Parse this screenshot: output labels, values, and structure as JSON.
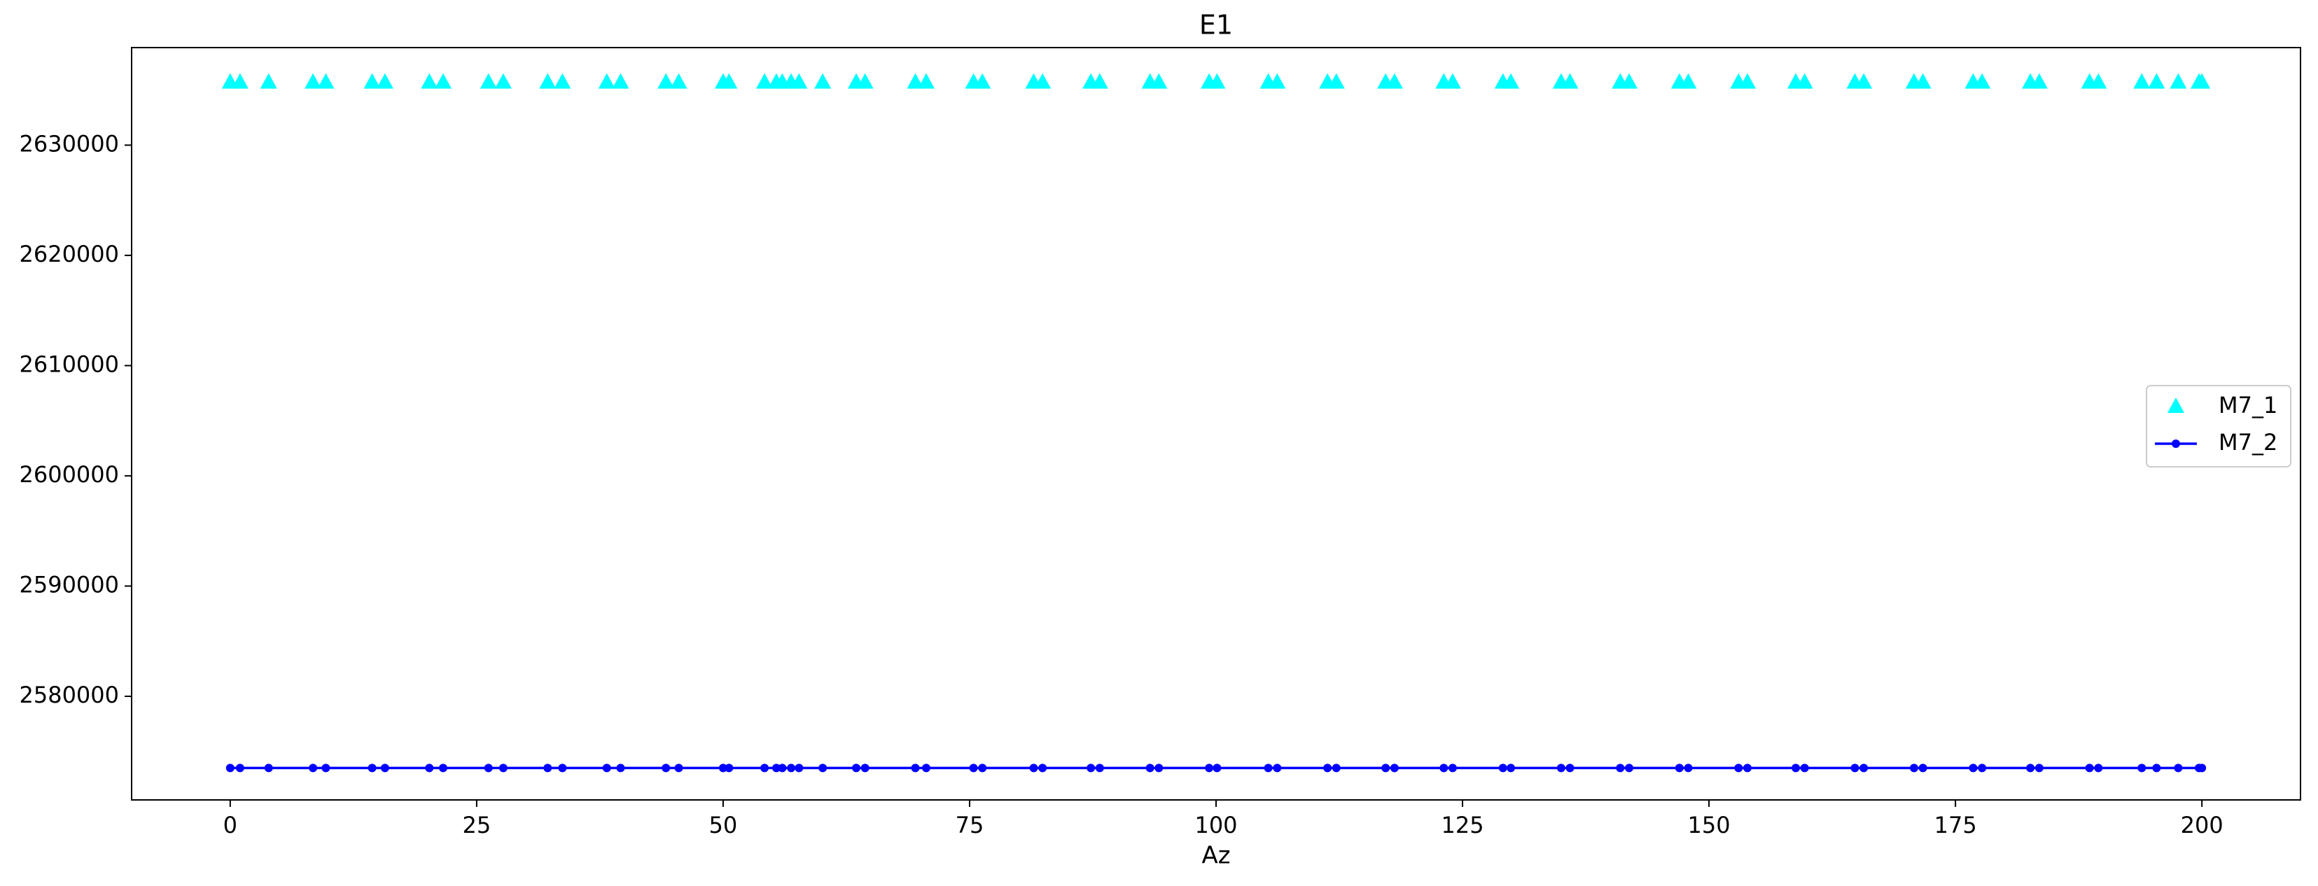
{
  "chart_data": {
    "type": "line",
    "title": "E1",
    "xlabel": "Az",
    "x": [
      0,
      1,
      3.9,
      8.4,
      9.7,
      14.4,
      15.7,
      20.2,
      21.6,
      26.2,
      27.7,
      32.2,
      33.7,
      38.2,
      39.6,
      44.2,
      45.5,
      50,
      50.6,
      54.2,
      55.4,
      56,
      56.9,
      57.7,
      60.1,
      63.5,
      64.4,
      69.5,
      70.6,
      75.4,
      76.3,
      81.5,
      82.4,
      87.3,
      88.2,
      93.3,
      94.2,
      99.3,
      100.1,
      105.3,
      106.2,
      111.3,
      112.2,
      117.2,
      118.1,
      123.1,
      124,
      129.1,
      129.9,
      135,
      135.9,
      141,
      141.9,
      147,
      147.9,
      153,
      153.9,
      158.8,
      159.7,
      164.8,
      165.7,
      170.8,
      171.7,
      176.8,
      177.7,
      182.6,
      183.5,
      188.6,
      189.5,
      193.9,
      195.4,
      197.6,
      199.7,
      200
    ],
    "series": [
      {
        "name": "M7_1",
        "color": "#00ffff",
        "marker": "triangle",
        "line": false,
        "values": [
          2635700,
          2635700,
          2635700,
          2635700,
          2635700,
          2635700,
          2635700,
          2635700,
          2635700,
          2635700,
          2635700,
          2635700,
          2635700,
          2635700,
          2635700,
          2635700,
          2635700,
          2635700,
          2635700,
          2635700,
          2635700,
          2635700,
          2635700,
          2635700,
          2635700,
          2635700,
          2635700,
          2635700,
          2635700,
          2635700,
          2635700,
          2635700,
          2635700,
          2635700,
          2635700,
          2635700,
          2635700,
          2635700,
          2635700,
          2635700,
          2635700,
          2635700,
          2635700,
          2635700,
          2635700,
          2635700,
          2635700,
          2635700,
          2635700,
          2635700,
          2635700,
          2635700,
          2635700,
          2635700,
          2635700,
          2635700,
          2635700,
          2635700,
          2635700,
          2635700,
          2635700,
          2635700,
          2635700,
          2635700,
          2635700,
          2635700,
          2635700,
          2635700,
          2635700,
          2635700,
          2635700,
          2635700,
          2635700,
          2635700
        ]
      },
      {
        "name": "M7_2",
        "color": "#0000ff",
        "marker": "dot",
        "line": true,
        "values": [
          2573500,
          2573500,
          2573500,
          2573500,
          2573500,
          2573500,
          2573500,
          2573500,
          2573500,
          2573500,
          2573500,
          2573500,
          2573500,
          2573500,
          2573500,
          2573500,
          2573500,
          2573500,
          2573500,
          2573500,
          2573500,
          2573500,
          2573500,
          2573500,
          2573500,
          2573500,
          2573500,
          2573500,
          2573500,
          2573500,
          2573500,
          2573500,
          2573500,
          2573500,
          2573500,
          2573500,
          2573500,
          2573500,
          2573500,
          2573500,
          2573500,
          2573500,
          2573500,
          2573500,
          2573500,
          2573500,
          2573500,
          2573500,
          2573500,
          2573500,
          2573500,
          2573500,
          2573500,
          2573500,
          2573500,
          2573500,
          2573500,
          2573500,
          2573500,
          2573500,
          2573500,
          2573500,
          2573500,
          2573500,
          2573500,
          2573500,
          2573500,
          2573500,
          2573500,
          2573500,
          2573500,
          2573500,
          2573500,
          2573500
        ]
      }
    ],
    "xlim": [
      -10,
      210
    ],
    "xticks": [
      0,
      25,
      50,
      75,
      100,
      125,
      150,
      175,
      200
    ],
    "ylim": [
      2570600,
      2638850
    ],
    "yticks": [
      2580000,
      2590000,
      2600000,
      2610000,
      2620000,
      2630000
    ],
    "legend": "right"
  }
}
